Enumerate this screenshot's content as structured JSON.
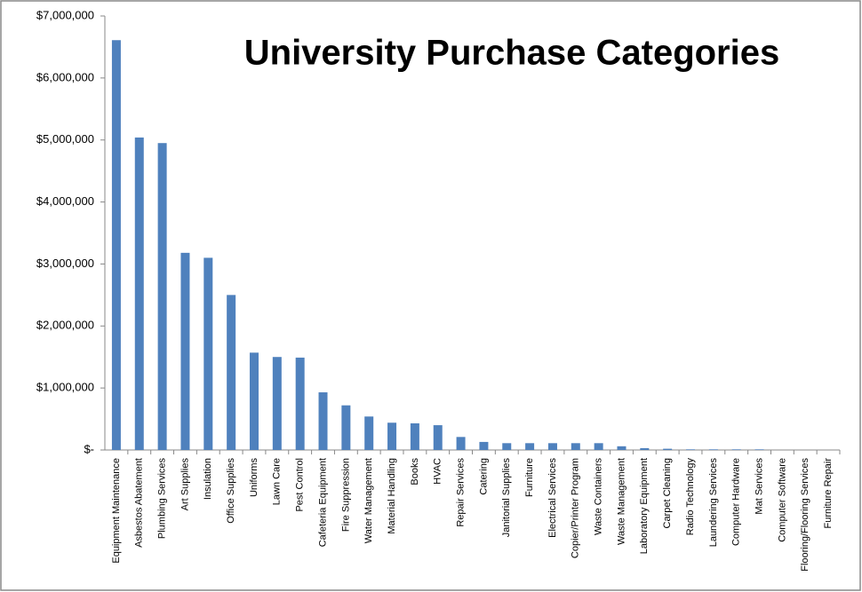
{
  "chart_data": {
    "type": "bar",
    "title": "University Purchase Categories",
    "categories": [
      "Equipment Maintenance",
      "Asbestos Abatement",
      "Plumbing Services",
      "Art Supplies",
      "Insulation",
      "Office Supplies",
      "Uniforms",
      "Lawn Care",
      "Pest Control",
      "Cafeteria Equipment",
      "Fire Suppression",
      "Water Management",
      "Material Handling",
      "Books",
      "HVAC",
      "Repair Services",
      "Catering",
      "Janitorial Supplies",
      "Furniture",
      "Electrical Services",
      "Copier/Printer Program",
      "Waste Containers",
      "Waste Management",
      "Laboratory Equipment",
      "Carpet Cleaning",
      "Radio Technology",
      "Laundering Services",
      "Computer Hardware",
      "Mat Services",
      "Computer Software",
      "Flooring/Flooring Services",
      "Furniture Repair"
    ],
    "values": [
      6610000,
      5040000,
      4950000,
      3180000,
      3100000,
      2500000,
      1570000,
      1500000,
      1490000,
      930000,
      720000,
      540000,
      440000,
      430000,
      400000,
      210000,
      130000,
      110000,
      110000,
      110000,
      110000,
      110000,
      60000,
      30000,
      20000,
      10000,
      10000,
      10000,
      10000,
      0,
      0,
      0
    ],
    "color": "#4f81bd",
    "ylim": [
      0,
      7000000
    ],
    "yticks": [
      {
        "value": 0,
        "label": "$-"
      },
      {
        "value": 1000000,
        "label": "$1,000,000"
      },
      {
        "value": 2000000,
        "label": "$2,000,000"
      },
      {
        "value": 3000000,
        "label": "$3,000,000"
      },
      {
        "value": 4000000,
        "label": "$4,000,000"
      },
      {
        "value": 5000000,
        "label": "$5,000,000"
      },
      {
        "value": 6000000,
        "label": "$6,000,000"
      },
      {
        "value": 7000000,
        "label": "$7,000,000"
      }
    ],
    "grid": false
  }
}
